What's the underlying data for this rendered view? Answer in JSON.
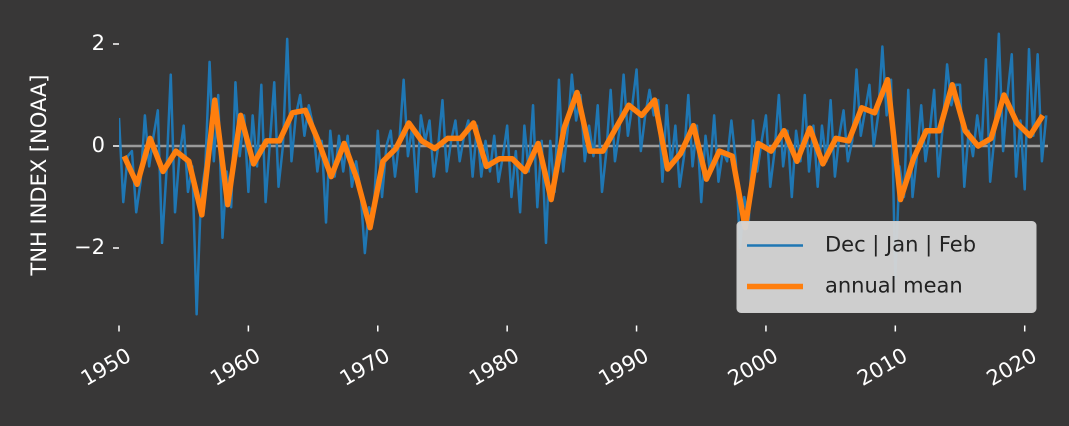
{
  "chart_data": {
    "type": "line",
    "ylabel": "TNH INDEX [NOAA]",
    "xlim": [
      1950,
      2021.8
    ],
    "ylim": [
      -3.5,
      2.5
    ],
    "xticks": [
      1950,
      1960,
      1970,
      1980,
      1990,
      2000,
      2010,
      2020
    ],
    "yticks": [
      {
        "value": -2,
        "label": "−2"
      },
      0,
      2
    ],
    "hline": 0,
    "hline_color": "#9a9a9a",
    "legend": "lower right",
    "series": [
      {
        "name": "Dec | Jan | Feb",
        "color": "#1f77b4",
        "x": [
          1950,
          1950.33,
          1950.67,
          1951,
          1951.33,
          1951.67,
          1952,
          1952.33,
          1952.67,
          1953,
          1953.33,
          1953.67,
          1954,
          1954.33,
          1954.67,
          1955,
          1955.33,
          1955.67,
          1956,
          1956.33,
          1956.67,
          1957,
          1957.33,
          1957.67,
          1958,
          1958.33,
          1958.67,
          1959,
          1959.33,
          1959.67,
          1960,
          1960.33,
          1960.67,
          1961,
          1961.33,
          1961.67,
          1962,
          1962.33,
          1962.67,
          1963,
          1963.33,
          1963.67,
          1964,
          1964.33,
          1964.67,
          1965,
          1965.33,
          1965.67,
          1966,
          1966.33,
          1966.67,
          1967,
          1967.33,
          1967.67,
          1968,
          1968.33,
          1968.67,
          1969,
          1969.33,
          1969.67,
          1970,
          1970.33,
          1970.67,
          1971,
          1971.33,
          1971.67,
          1972,
          1972.33,
          1972.67,
          1973,
          1973.33,
          1973.67,
          1974,
          1974.33,
          1974.67,
          1975,
          1975.33,
          1975.67,
          1976,
          1976.33,
          1976.67,
          1977,
          1977.33,
          1977.67,
          1978,
          1978.33,
          1978.67,
          1979,
          1979.33,
          1979.67,
          1980,
          1980.33,
          1980.67,
          1981,
          1981.33,
          1981.67,
          1982,
          1982.33,
          1982.67,
          1983,
          1983.33,
          1983.67,
          1984,
          1984.33,
          1984.67,
          1985,
          1985.33,
          1985.67,
          1986,
          1986.33,
          1986.67,
          1987,
          1987.33,
          1987.67,
          1988,
          1988.33,
          1988.67,
          1989,
          1989.33,
          1989.67,
          1990,
          1990.33,
          1990.67,
          1991,
          1991.33,
          1991.67,
          1992,
          1992.33,
          1992.67,
          1993,
          1993.33,
          1993.67,
          1994,
          1994.33,
          1994.67,
          1995,
          1995.33,
          1995.67,
          1996,
          1996.33,
          1996.67,
          1997,
          1997.33,
          1997.67,
          1998,
          1998.33,
          1998.67,
          1999,
          1999.33,
          1999.67,
          2000,
          2000.33,
          2000.67,
          2001,
          2001.33,
          2001.67,
          2002,
          2002.33,
          2002.67,
          2003,
          2003.33,
          2003.67,
          2004,
          2004.33,
          2004.67,
          2005,
          2005.33,
          2005.67,
          2006,
          2006.33,
          2006.67,
          2007,
          2007.33,
          2007.67,
          2008,
          2008.33,
          2008.67,
          2009,
          2009.33,
          2009.67,
          2010,
          2010.33,
          2010.67,
          2011,
          2011.33,
          2011.67,
          2012,
          2012.33,
          2012.67,
          2013,
          2013.33,
          2013.67,
          2014,
          2014.33,
          2014.67,
          2015,
          2015.33,
          2015.67,
          2016,
          2016.33,
          2016.67,
          2017,
          2017.33,
          2017.67,
          2018,
          2018.33,
          2018.67,
          2019,
          2019.33,
          2019.67,
          2020,
          2020.33,
          2020.67,
          2021,
          2021.33,
          2021.67
        ],
        "values": [
          0.55,
          -1.1,
          -0.2,
          -0.1,
          -1.3,
          -0.7,
          0.6,
          -0.4,
          0.2,
          0.7,
          -1.9,
          -0.5,
          1.4,
          -1.3,
          -0.2,
          0.4,
          -0.9,
          -0.4,
          -3.3,
          -1.0,
          -0.4,
          1.65,
          -0.3,
          1.0,
          -1.8,
          -0.5,
          -1.2,
          1.25,
          -0.2,
          0.6,
          -0.9,
          0.6,
          -0.4,
          1.2,
          -1.1,
          0.1,
          1.25,
          -0.8,
          0.0,
          2.1,
          -0.3,
          0.6,
          1.0,
          0.2,
          0.8,
          0.4,
          -0.5,
          0.1,
          -1.5,
          0.3,
          -0.6,
          0.2,
          -0.5,
          0.2,
          -0.8,
          -0.3,
          -0.9,
          -2.1,
          -1.2,
          -1.4,
          0.3,
          -1.0,
          0.0,
          0.3,
          -0.6,
          0.1,
          1.3,
          -0.2,
          0.4,
          -0.9,
          0.6,
          0.1,
          0.5,
          -0.6,
          0.0,
          0.9,
          -0.5,
          0.1,
          0.5,
          -0.3,
          0.2,
          0.5,
          -0.6,
          0.4,
          -0.6,
          0.1,
          -0.5,
          0.2,
          -0.7,
          -0.2,
          0.4,
          -1.0,
          -0.1,
          -1.3,
          0.4,
          -0.5,
          0.8,
          -1.2,
          0.1,
          -1.9,
          0.1,
          -0.9,
          1.3,
          -0.5,
          0.3,
          1.4,
          0.5,
          1.0,
          -0.3,
          0.4,
          -0.2,
          0.8,
          -0.9,
          -0.1,
          1.1,
          -0.3,
          0.3,
          1.4,
          0.2,
          0.8,
          1.5,
          -0.1,
          0.6,
          1.1,
          0.6,
          0.9,
          -0.7,
          0.8,
          -0.4,
          0.4,
          -0.8,
          -0.2,
          1.0,
          -0.4,
          0.4,
          -1.1,
          0.2,
          -0.5,
          0.6,
          -0.7,
          -0.1,
          -0.3,
          0.5,
          -0.3,
          -2.0,
          -1.0,
          -1.5,
          0.5,
          -0.5,
          0.1,
          0.6,
          -0.8,
          -0.1,
          1.0,
          -0.4,
          0.3,
          -1.0,
          0.3,
          -0.3,
          1.0,
          -0.5,
          0.4,
          -0.8,
          0.4,
          -0.3,
          0.9,
          -0.6,
          0.2,
          0.7,
          -0.3,
          0.1,
          1.5,
          0.2,
          0.7,
          1.2,
          0.0,
          0.6,
          1.95,
          0.6,
          1.3,
          -2.6,
          -0.4,
          -1.0,
          1.1,
          -1.0,
          -0.2,
          0.8,
          -0.3,
          0.3,
          1.1,
          -0.6,
          0.4,
          1.6,
          0.8,
          1.2,
          1.2,
          -0.8,
          0.3,
          -0.2,
          0.6,
          0.0,
          1.7,
          -0.7,
          0.2,
          2.2,
          -0.1,
          1.0,
          1.8,
          -0.6,
          0.5,
          -0.85,
          1.9,
          0.2,
          1.8,
          -0.3,
          0.6
        ]
      },
      {
        "name": "annual mean",
        "color": "#ff7f0e",
        "x": [
          1950.4,
          1951.4,
          1952.4,
          1953.4,
          1954.4,
          1955.4,
          1956.4,
          1957.4,
          1958.4,
          1959.4,
          1960.4,
          1961.4,
          1962.4,
          1963.4,
          1964.4,
          1965.4,
          1966.4,
          1967.4,
          1968.4,
          1969.4,
          1970.4,
          1971.4,
          1972.4,
          1973.4,
          1974.4,
          1975.4,
          1976.4,
          1977.4,
          1978.4,
          1979.4,
          1980.4,
          1981.4,
          1982.4,
          1983.4,
          1984.4,
          1985.4,
          1986.4,
          1987.4,
          1988.4,
          1989.4,
          1990.4,
          1991.4,
          1992.4,
          1993.4,
          1994.4,
          1995.4,
          1996.4,
          1997.4,
          1998.4,
          1999.4,
          2000.4,
          2001.4,
          2002.4,
          2003.4,
          2004.4,
          2005.4,
          2006.4,
          2007.4,
          2008.4,
          2009.4,
          2010.4,
          2011.4,
          2012.4,
          2013.4,
          2014.4,
          2015.4,
          2016.4,
          2017.4,
          2018.4,
          2019.4,
          2020.4,
          2021.4
        ],
        "values": [
          -0.2,
          -0.75,
          0.15,
          -0.5,
          -0.1,
          -0.3,
          -1.35,
          0.9,
          -1.15,
          0.6,
          -0.35,
          0.1,
          0.1,
          0.65,
          0.7,
          0.1,
          -0.6,
          0.05,
          -0.65,
          -1.6,
          -0.3,
          -0.05,
          0.45,
          0.1,
          -0.05,
          0.15,
          0.15,
          0.45,
          -0.4,
          -0.25,
          -0.25,
          -0.5,
          0.05,
          -1.05,
          0.35,
          1.05,
          -0.1,
          -0.1,
          0.35,
          0.8,
          0.6,
          0.9,
          -0.45,
          -0.15,
          0.4,
          -0.65,
          -0.1,
          -0.2,
          -1.6,
          0.05,
          -0.1,
          0.3,
          -0.3,
          0.35,
          -0.35,
          0.15,
          0.1,
          0.75,
          0.65,
          1.3,
          -1.05,
          -0.25,
          0.3,
          0.3,
          1.2,
          0.3,
          0.0,
          0.15,
          1.0,
          0.45,
          0.2,
          0.6
        ]
      }
    ]
  }
}
